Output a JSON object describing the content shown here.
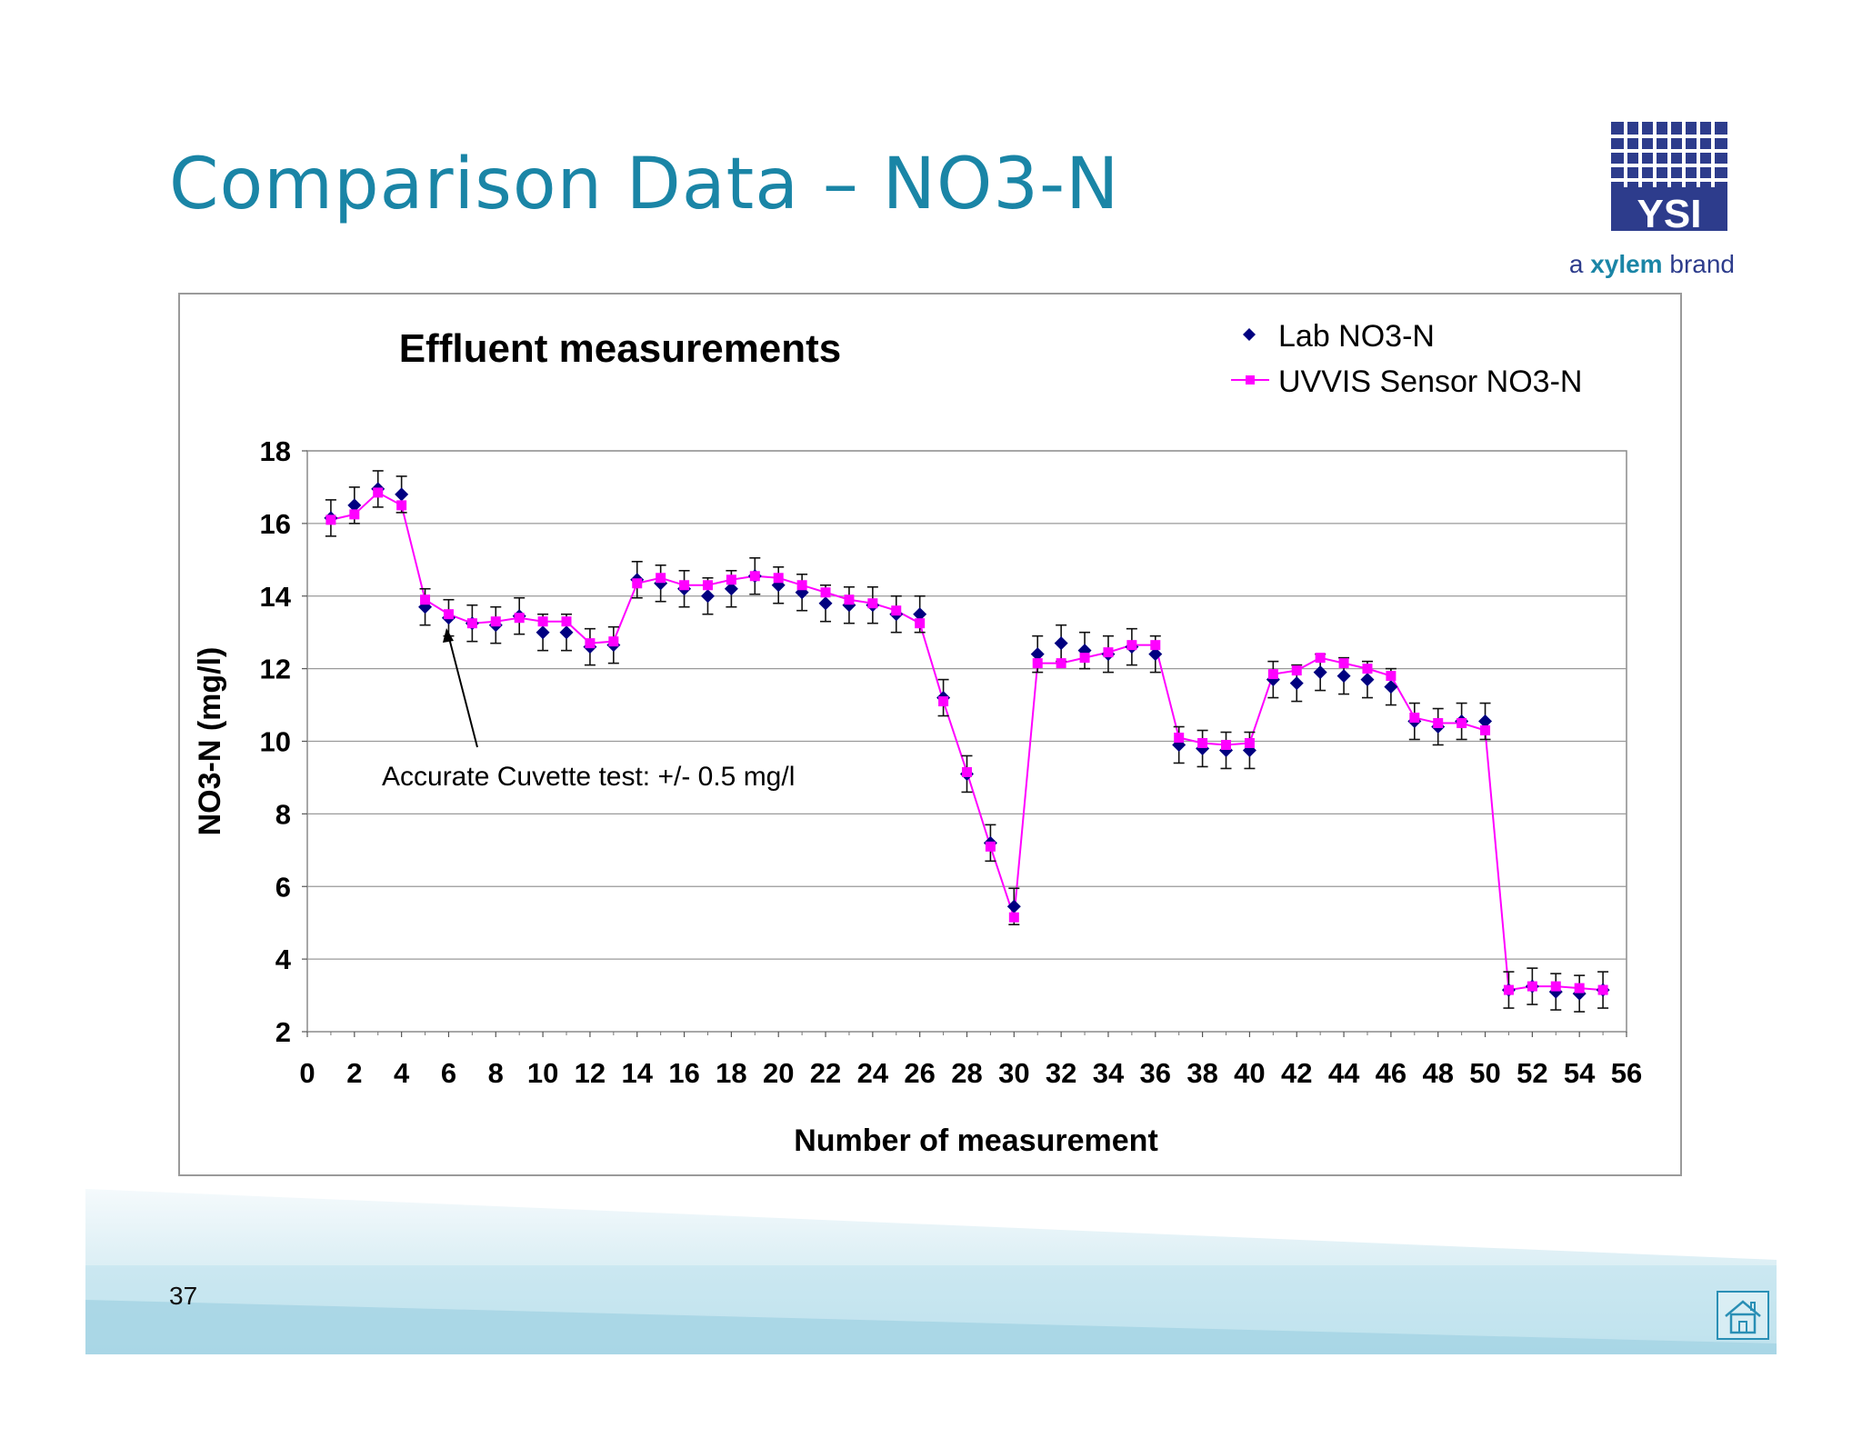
{
  "slide": {
    "title": "Comparison Data – NO3-N",
    "page_number": "37"
  },
  "logo": {
    "brand": "YSI",
    "tagline_prefix": "a ",
    "tagline_brand": "xylem",
    "tagline_suffix": " brand",
    "color": "#2d3c8c"
  },
  "footer": {
    "home_icon": "home-icon",
    "band_color": "#a9d8e6"
  },
  "colors": {
    "title": "#1a85a6",
    "lab_series": "#000080",
    "sensor_series": "#ff00ff",
    "gridline": "#9a9a9a"
  },
  "chart_data": {
    "type": "line",
    "title": "Effluent measurements",
    "xlabel": "Number of measurement",
    "ylabel": "NO3-N (mg/l)",
    "xlim": [
      0,
      56
    ],
    "ylim": [
      2,
      18
    ],
    "x_ticks": [
      "0",
      "2",
      "4",
      "6",
      "8",
      "10",
      "12",
      "14",
      "16",
      "18",
      "20",
      "22",
      "24",
      "26",
      "28",
      "30",
      "32",
      "34",
      "36",
      "38",
      "40",
      "42",
      "44",
      "46",
      "48",
      "50",
      "52",
      "54",
      "56"
    ],
    "y_ticks": [
      "2",
      "4",
      "6",
      "8",
      "10",
      "12",
      "14",
      "16",
      "18"
    ],
    "grid": true,
    "legend_position": "top-right",
    "annotation": "Accurate Cuvette test: +/- 0.5 mg/l",
    "error_bar": 0.5,
    "x": [
      1,
      2,
      3,
      4,
      5,
      6,
      7,
      8,
      9,
      10,
      11,
      12,
      13,
      14,
      15,
      16,
      17,
      18,
      19,
      20,
      21,
      22,
      23,
      24,
      25,
      26,
      27,
      28,
      29,
      30,
      31,
      32,
      33,
      34,
      35,
      36,
      37,
      38,
      39,
      40,
      41,
      42,
      43,
      44,
      45,
      46,
      47,
      48,
      49,
      50,
      51,
      52,
      53,
      54,
      55
    ],
    "series": [
      {
        "name": "Lab NO3-N",
        "marker": "diamond",
        "line": false,
        "values": [
          16.15,
          16.5,
          16.95,
          16.8,
          13.7,
          13.4,
          13.25,
          13.2,
          13.45,
          13.0,
          13.0,
          12.6,
          12.65,
          14.45,
          14.35,
          14.2,
          14.0,
          14.2,
          14.55,
          14.3,
          14.1,
          13.8,
          13.75,
          13.75,
          13.5,
          13.5,
          11.2,
          9.1,
          7.2,
          5.45,
          12.4,
          12.7,
          12.5,
          12.4,
          12.6,
          12.4,
          9.9,
          9.8,
          9.75,
          9.75,
          11.7,
          11.6,
          11.9,
          11.8,
          11.7,
          11.5,
          10.55,
          10.4,
          10.55,
          10.55,
          3.15,
          3.25,
          3.1,
          3.05,
          3.15
        ]
      },
      {
        "name": "UVVIS Sensor NO3-N",
        "marker": "square",
        "line": true,
        "values": [
          16.1,
          16.25,
          16.85,
          16.5,
          13.9,
          13.5,
          13.25,
          13.3,
          13.4,
          13.3,
          13.3,
          12.7,
          12.75,
          14.35,
          14.5,
          14.3,
          14.3,
          14.45,
          14.55,
          14.5,
          14.3,
          14.1,
          13.9,
          13.8,
          13.6,
          13.25,
          11.1,
          9.15,
          7.1,
          5.15,
          12.15,
          12.15,
          12.3,
          12.45,
          12.65,
          12.65,
          10.1,
          9.95,
          9.9,
          9.95,
          11.85,
          11.95,
          12.3,
          12.15,
          12.0,
          11.8,
          10.65,
          10.5,
          10.5,
          10.3,
          3.15,
          3.25,
          3.25,
          3.2,
          3.15
        ]
      }
    ]
  }
}
